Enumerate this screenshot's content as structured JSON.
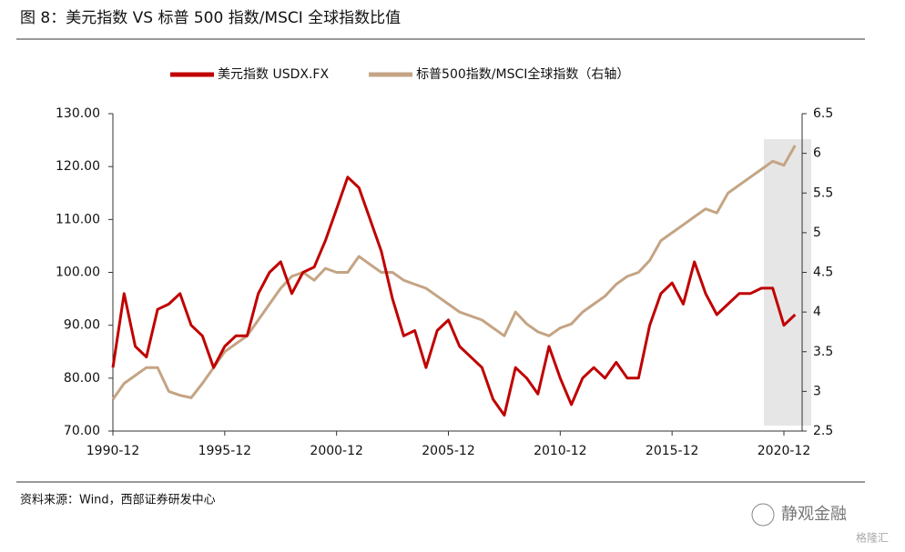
{
  "chart_data": {
    "type": "line",
    "title": "图 8：美元指数 VS 标普 500 指数/MSCI 全球指数比值",
    "source": "资料来源：Wind，西部证券研发中心",
    "watermark": "静观金融",
    "watermark2": "格隆汇",
    "x": [
      "1990-12",
      "1991-06",
      "1991-12",
      "1992-06",
      "1992-12",
      "1993-06",
      "1993-12",
      "1994-06",
      "1994-12",
      "1995-06",
      "1995-12",
      "1996-06",
      "1996-12",
      "1997-06",
      "1997-12",
      "1998-06",
      "1998-12",
      "1999-06",
      "1999-12",
      "2000-06",
      "2000-12",
      "2001-06",
      "2001-12",
      "2002-06",
      "2002-12",
      "2003-06",
      "2003-12",
      "2004-06",
      "2004-12",
      "2005-06",
      "2005-12",
      "2006-06",
      "2006-12",
      "2007-06",
      "2007-12",
      "2008-06",
      "2008-12",
      "2009-06",
      "2009-12",
      "2010-06",
      "2010-12",
      "2011-06",
      "2011-12",
      "2012-06",
      "2012-12",
      "2013-06",
      "2013-12",
      "2014-06",
      "2014-12",
      "2015-06",
      "2015-12",
      "2016-06",
      "2016-12",
      "2017-06",
      "2017-12",
      "2018-06",
      "2018-12",
      "2019-06",
      "2019-12",
      "2020-06",
      "2020-12",
      "2021-06"
    ],
    "xticks": [
      "1990-12",
      "1995-12",
      "2000-12",
      "2005-12",
      "2010-12",
      "2015-12",
      "2020-12"
    ],
    "series": [
      {
        "name": "美元指数 USDX.FX",
        "color": "#c00000",
        "values": [
          82,
          96,
          86,
          84,
          93,
          94,
          96,
          90,
          88,
          82,
          86,
          88,
          88,
          96,
          100,
          102,
          96,
          100,
          101,
          106,
          112,
          118,
          116,
          110,
          104,
          95,
          88,
          89,
          82,
          89,
          91,
          86,
          84,
          82,
          76,
          73,
          82,
          80,
          77,
          86,
          80,
          75,
          80,
          82,
          80,
          83,
          80,
          80,
          90,
          96,
          98,
          94,
          102,
          96,
          92,
          94,
          96,
          96,
          97,
          97,
          90,
          92
        ]
      },
      {
        "name": "标普500指数/MSCI全球指数（右轴）",
        "color": "#c4a484",
        "axis": "y2",
        "values": [
          2.9,
          3.1,
          3.2,
          3.3,
          3.3,
          3.0,
          2.95,
          2.92,
          3.1,
          3.3,
          3.5,
          3.6,
          3.7,
          3.9,
          4.1,
          4.3,
          4.45,
          4.5,
          4.4,
          4.55,
          4.5,
          4.5,
          4.7,
          4.6,
          4.5,
          4.5,
          4.4,
          4.35,
          4.3,
          4.2,
          4.1,
          4.0,
          3.95,
          3.9,
          3.8,
          3.7,
          4.0,
          3.85,
          3.75,
          3.7,
          3.8,
          3.85,
          4.0,
          4.1,
          4.2,
          4.35,
          4.45,
          4.5,
          4.65,
          4.9,
          5.0,
          5.1,
          5.2,
          5.3,
          5.25,
          5.5,
          5.6,
          5.7,
          5.8,
          5.9,
          5.85,
          6.1
        ]
      }
    ],
    "ylim": [
      70,
      130
    ],
    "yticks": [
      {
        "value": 70,
        "label": "70.00"
      },
      {
        "value": 80,
        "label": "80.00"
      },
      {
        "value": 90,
        "label": "90.00"
      },
      {
        "value": 100,
        "label": "100.00"
      },
      {
        "value": 110,
        "label": "110.00"
      },
      {
        "value": 120,
        "label": "120.00"
      },
      {
        "value": 130,
        "label": "130.00"
      }
    ],
    "y2lim": [
      2.5,
      6.5
    ],
    "y2ticks": [
      2.5,
      3,
      3.5,
      4,
      4.5,
      5,
      5.5,
      6,
      6.5
    ],
    "legend": "top"
  }
}
